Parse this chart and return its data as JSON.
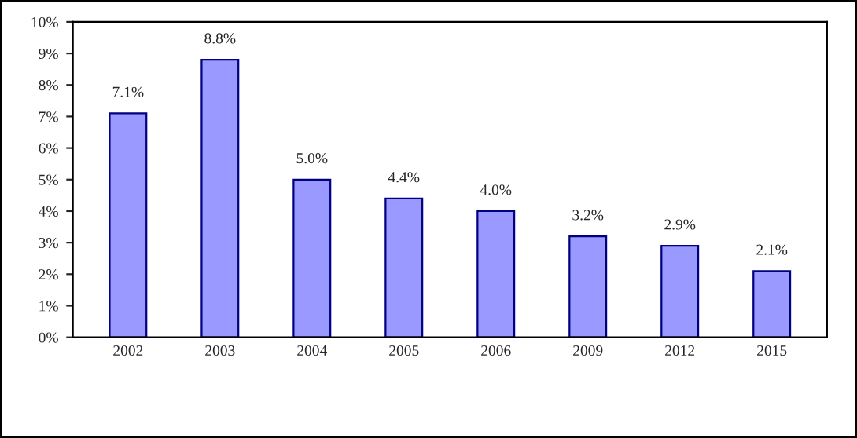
{
  "chart_data": {
    "type": "bar",
    "categories": [
      "2002",
      "2003",
      "2004",
      "2005",
      "2006",
      "2009",
      "2012",
      "2015"
    ],
    "values": [
      7.1,
      8.8,
      5.0,
      4.4,
      4.0,
      3.2,
      2.9,
      2.1
    ],
    "value_labels": [
      "7.1%",
      "8.8%",
      "5.0%",
      "4.4%",
      "4.0%",
      "3.2%",
      "2.9%",
      "2.1%"
    ],
    "color": "#9999ff",
    "ylim": [
      0,
      10
    ],
    "yticks": [
      {
        "value": 0,
        "label": "0%"
      },
      {
        "value": 1,
        "label": "1%"
      },
      {
        "value": 2,
        "label": "2%"
      },
      {
        "value": 3,
        "label": "3%"
      },
      {
        "value": 4,
        "label": "4%"
      },
      {
        "value": 5,
        "label": "5%"
      },
      {
        "value": 6,
        "label": "6%"
      },
      {
        "value": 7,
        "label": "7%"
      },
      {
        "value": 8,
        "label": "8%"
      },
      {
        "value": 9,
        "label": "9%"
      },
      {
        "value": 10,
        "label": "10%"
      }
    ],
    "grid": false,
    "legend": false
  }
}
